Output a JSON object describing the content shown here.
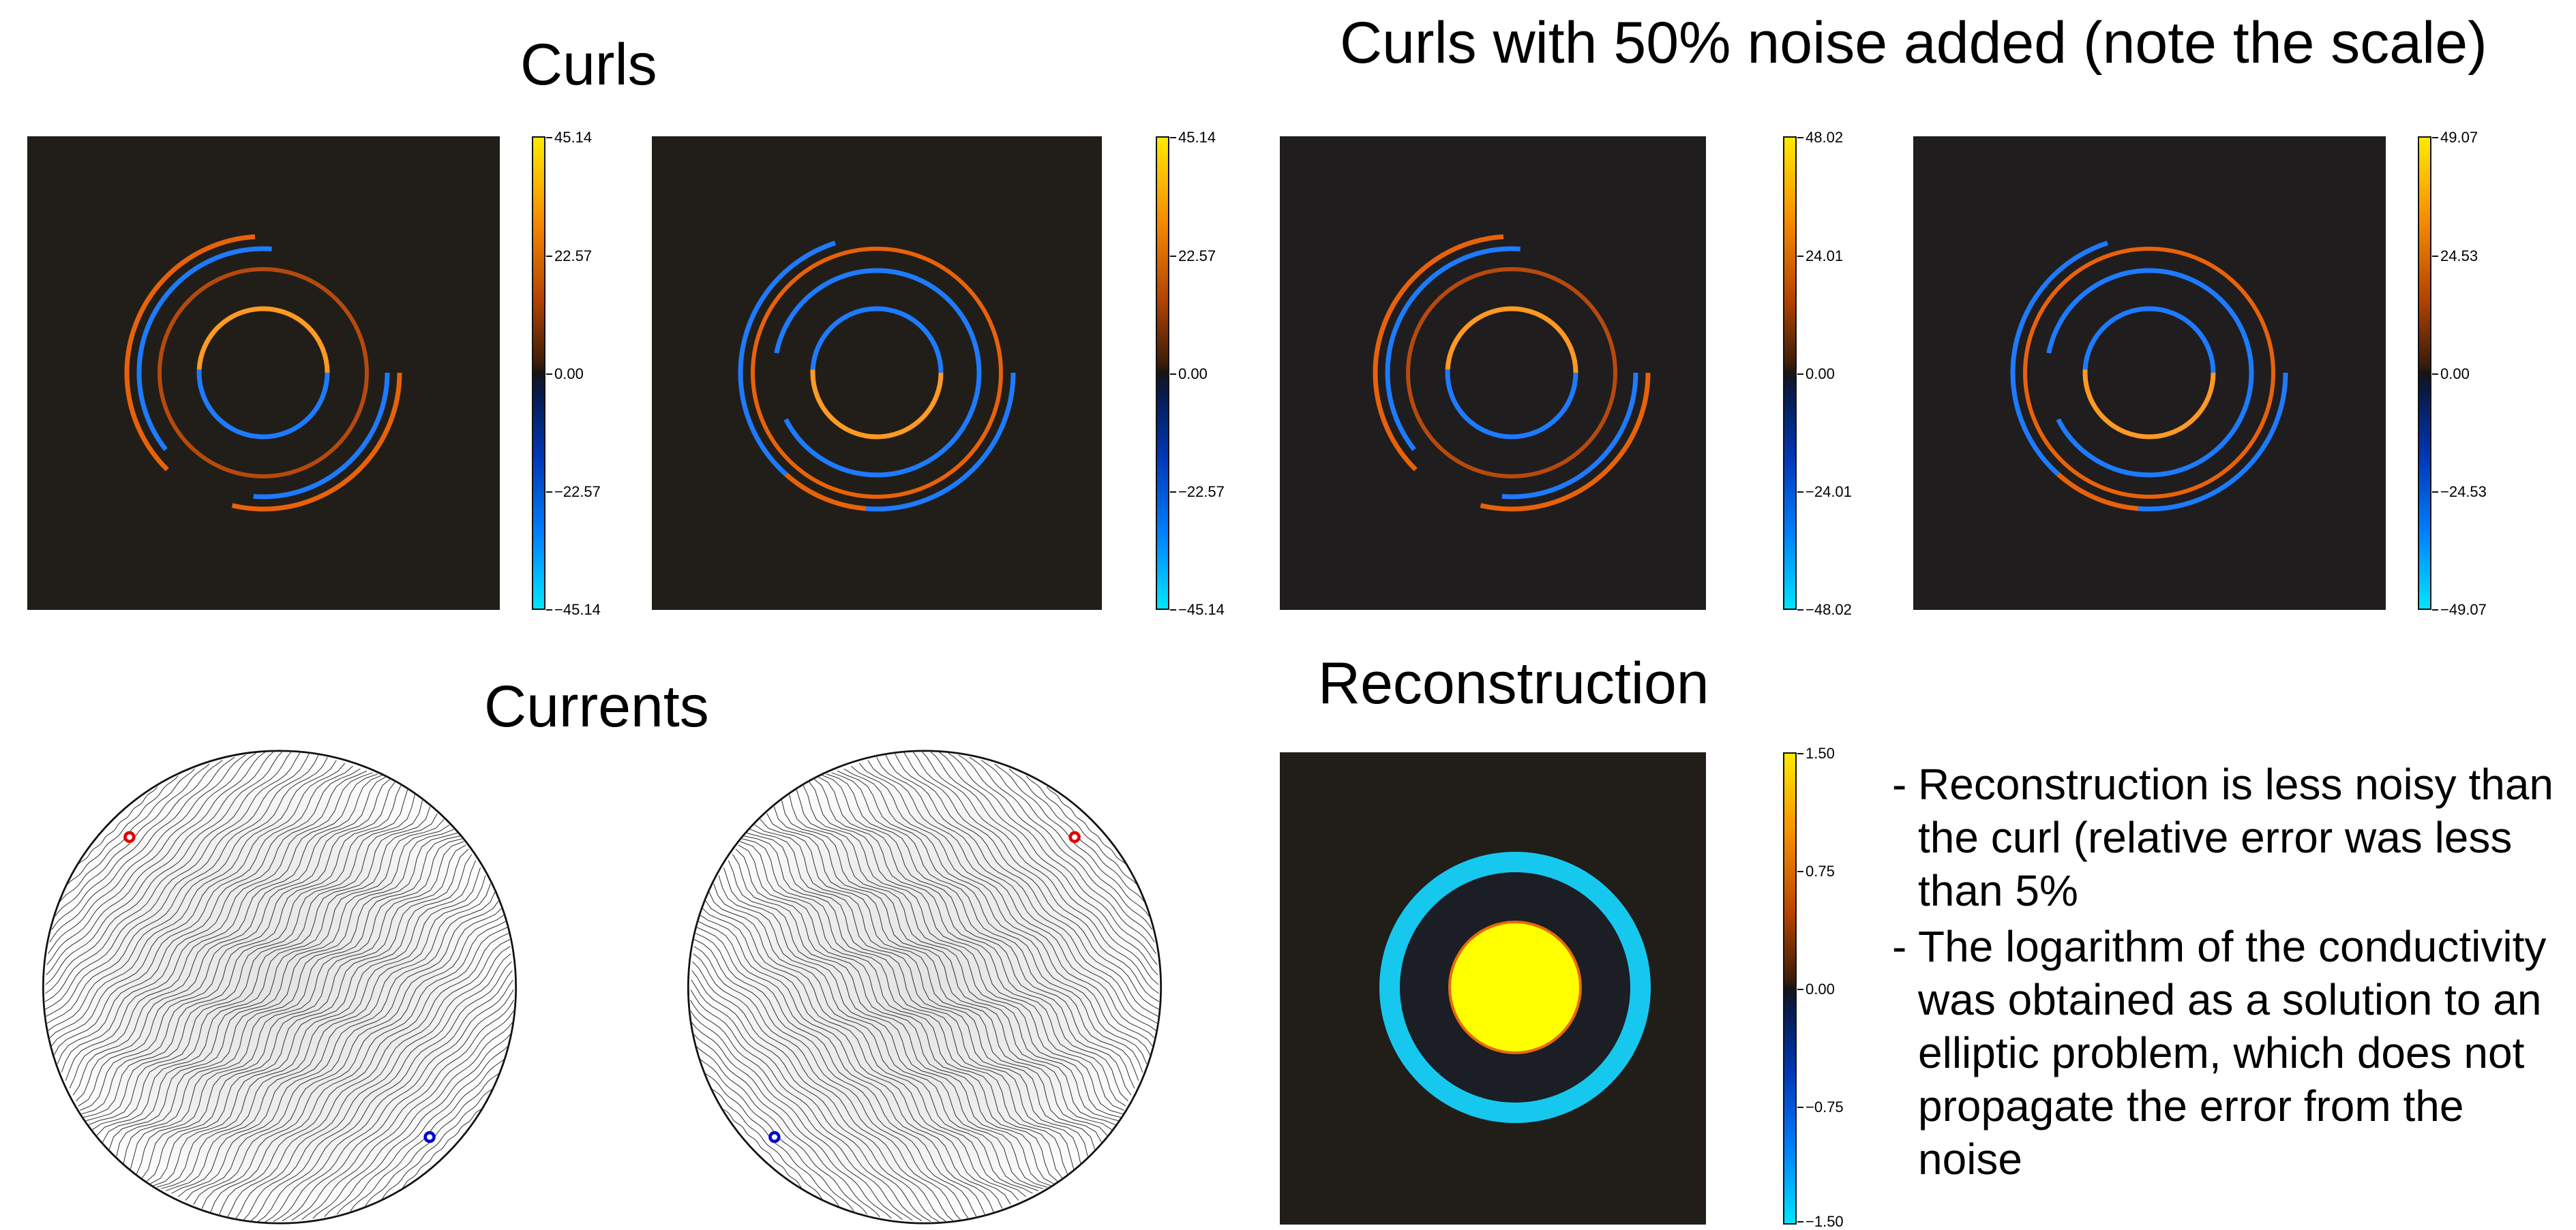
{
  "titles": {
    "curls": "Curls",
    "curls_noise": "Curls  with 50% noise added (note the scale)",
    "currents": "Currents",
    "reconstruction": "Reconstruction"
  },
  "colorbars": {
    "curl1": [
      "45.14",
      "22.57",
      "0.00",
      "−22.57",
      "−45.14"
    ],
    "curl2": [
      "45.14",
      "22.57",
      "0.00",
      "−22.57",
      "−45.14"
    ],
    "noise1": [
      "48.02",
      "24.01",
      "0.00",
      "−24.01",
      "−48.02"
    ],
    "noise2": [
      "49.07",
      "24.53",
      "0.00",
      "−24.53",
      "−49.07"
    ],
    "recon": [
      "1.50",
      "0.75",
      "0.00",
      "−0.75",
      "−1.50"
    ]
  },
  "notes": [
    {
      "bullet": "-",
      "text": "Reconstruction is less noisy than the curl (relative error was less than 5%"
    },
    {
      "bullet": "-",
      "text": "The logarithm of the conductivity was obtained as a solution to an elliptic problem, which does not propagate the error from the noise"
    }
  ],
  "colors": {
    "background_panel": "#211e19",
    "positive": "#e8620a",
    "negative": "#1e7bff",
    "recon_ring": "#17c8ee",
    "recon_core": "#ffff00",
    "source": "#e00000",
    "sink": "#0000cc"
  }
}
